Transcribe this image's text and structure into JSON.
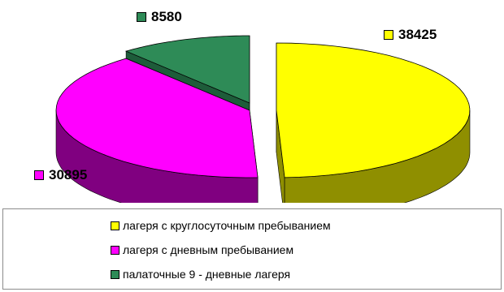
{
  "chart_data": {
    "type": "pie",
    "style": "3d-exploded",
    "categories": [
      "лагеря с круглосуточным пребыванием",
      "лагеря с дневным пребыванием",
      "палаточные 9 - дневные лагеря"
    ],
    "values": [
      38425,
      30895,
      8580
    ],
    "value_labels": [
      "38425",
      "30895",
      "8580"
    ],
    "colors": [
      "#ffff00",
      "#ff00ff",
      "#2e8b57"
    ],
    "side_colors": [
      "#8f8f00",
      "#800080",
      "#1e5c3a"
    ],
    "title": "",
    "legend_position": "bottom"
  }
}
